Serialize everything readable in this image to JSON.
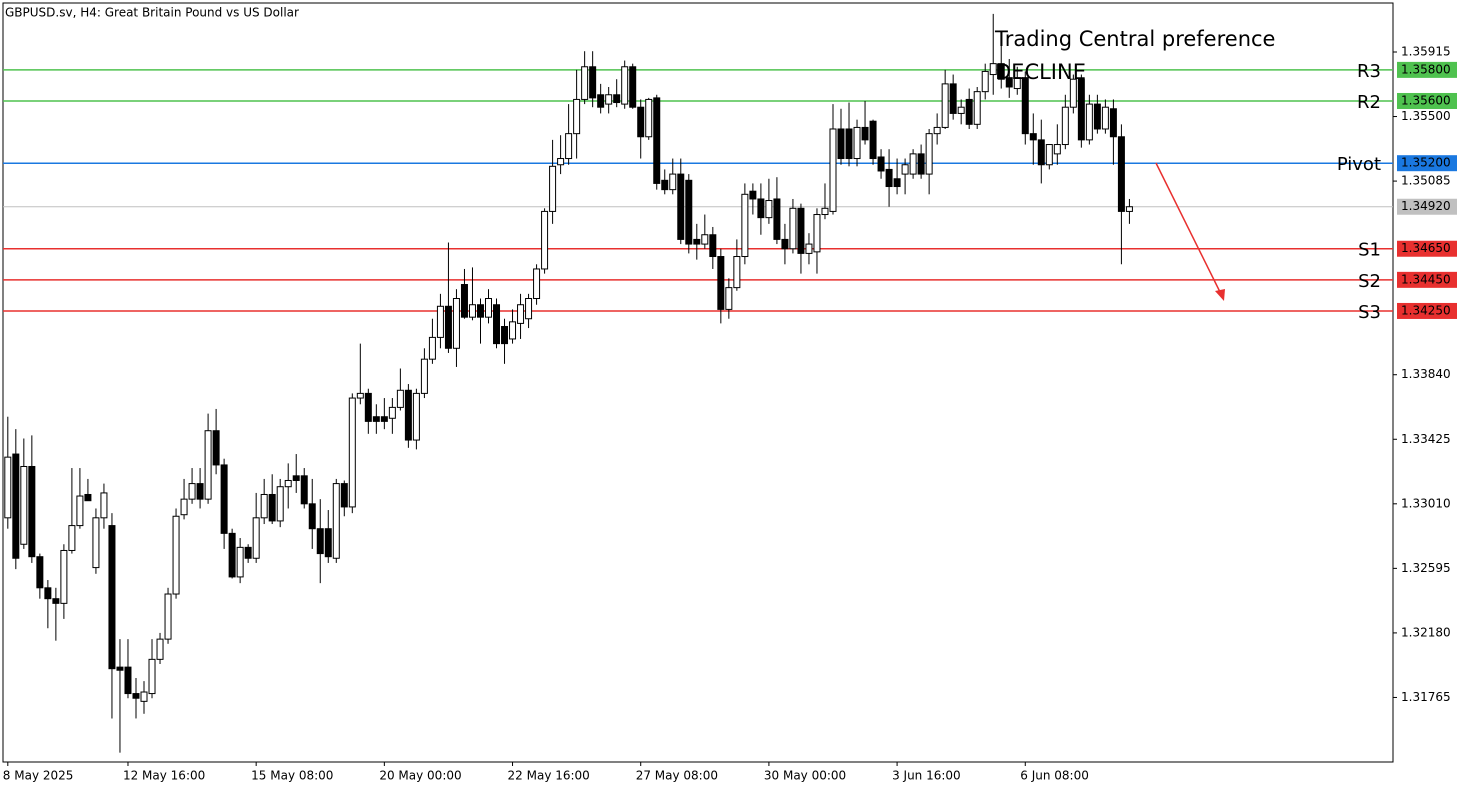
{
  "chart_data": {
    "type": "candlestick",
    "title": "GBPUSD.sv, H4:  Great Britain Pound vs US Dollar",
    "annotation": {
      "title": "Trading Central preference",
      "text": "DECLINE",
      "color": "#e8302f"
    },
    "up_color": "#ffffff",
    "down_color": "#000000",
    "open": [
      1.3292,
      1.3333,
      1.3275,
      1.3325,
      1.3267,
      1.3247,
      1.324,
      1.3237,
      1.3271,
      1.3287,
      1.3307,
      1.326,
      1.3292,
      1.3287,
      1.3196,
      1.3196,
      1.3179,
      1.3174,
      1.3179,
      1.3201,
      1.3214,
      1.3243,
      1.3294,
      1.3304,
      1.3314,
      1.3304,
      1.3348,
      1.3326,
      1.3282,
      1.3254,
      1.3273,
      1.3266,
      1.3292,
      1.3307,
      1.329,
      1.3312,
      1.3319,
      1.3319,
      1.3301,
      1.3285,
      1.3285,
      1.3266,
      1.3314,
      1.3299,
      1.3369,
      1.3372,
      1.3357,
      1.3357,
      1.3356,
      1.3363,
      1.3374,
      1.3342,
      1.3372,
      1.3394,
      1.3408,
      1.3428,
      1.3401,
      1.3442,
      1.3421,
      1.3429,
      1.3421,
      1.3429,
      1.3415,
      1.3407,
      1.3417,
      1.342,
      1.3433,
      1.3452,
      1.3489,
      1.3519,
      1.3523,
      1.3539,
      1.3561,
      1.3582,
      1.3564,
      1.3558,
      1.3564,
      1.3558,
      1.3582,
      1.3556,
      1.3537,
      1.3562,
      1.3509,
      1.3503,
      1.3513,
      1.3509,
      1.3471,
      1.3468,
      1.3474,
      1.346,
      1.3426,
      1.344,
      1.346,
      1.3502,
      1.3497,
      1.3485,
      1.3497,
      1.3471,
      1.3465,
      1.3491,
      1.3462,
      1.3463,
      1.3487,
      1.3489,
      1.3542,
      1.3542,
      1.3523,
      1.3543,
      1.3547,
      1.3524,
      1.3516,
      1.351,
      1.3513,
      1.3513,
      1.3526,
      1.3513,
      1.3539,
      1.3543,
      1.3571,
      1.3552,
      1.3561,
      1.3545,
      1.3566,
      1.3577,
      1.3584,
      1.3575,
      1.3568,
      1.3575,
      1.3539,
      1.3535,
      1.3519,
      1.3526,
      1.3532,
      1.3556,
      1.3574,
      1.3535,
      1.3558,
      1.3542,
      1.3555,
      1.3537,
      1.3489
    ],
    "high": [
      1.3357,
      1.3349,
      1.3343,
      1.3345,
      1.3269,
      1.3252,
      1.3247,
      1.3275,
      1.3324,
      1.3324,
      1.3317,
      1.3298,
      1.3314,
      1.3295,
      1.3214,
      1.3214,
      1.3189,
      1.3187,
      1.3214,
      1.3218,
      1.3247,
      1.3298,
      1.3317,
      1.3324,
      1.3324,
      1.3359,
      1.3362,
      1.333,
      1.3285,
      1.3279,
      1.3275,
      1.3308,
      1.3317,
      1.332,
      1.3317,
      1.3327,
      1.3333,
      1.3324,
      1.3317,
      1.3304,
      1.3297,
      1.3317,
      1.3316,
      1.3372,
      1.3404,
      1.3375,
      1.3365,
      1.3369,
      1.3369,
      1.3388,
      1.3378,
      1.3375,
      1.3401,
      1.342,
      1.3436,
      1.3469,
      1.3439,
      1.3452,
      1.3453,
      1.3433,
      1.3439,
      1.3433,
      1.342,
      1.3426,
      1.3436,
      1.3436,
      1.3455,
      1.3491,
      1.3535,
      1.3538,
      1.3558,
      1.358,
      1.3592,
      1.3592,
      1.3571,
      1.3569,
      1.3574,
      1.3586,
      1.3584,
      1.3561,
      1.3562,
      1.3564,
      1.3516,
      1.3523,
      1.3523,
      1.3513,
      1.3481,
      1.3487,
      1.3479,
      1.3465,
      1.3446,
      1.3471,
      1.3507,
      1.3507,
      1.3507,
      1.351,
      1.3511,
      1.3481,
      1.3497,
      1.3494,
      1.3475,
      1.3491,
      1.3507,
      1.3558,
      1.3555,
      1.3559,
      1.3548,
      1.356,
      1.3548,
      1.3529,
      1.3529,
      1.3523,
      1.3523,
      1.3529,
      1.3532,
      1.3542,
      1.3552,
      1.358,
      1.3577,
      1.3561,
      1.3568,
      1.3569,
      1.3584,
      1.3616,
      1.3605,
      1.3587,
      1.3582,
      1.3579,
      1.3552,
      1.3548,
      1.3532,
      1.3545,
      1.3564,
      1.3577,
      1.3577,
      1.3564,
      1.3564,
      1.3561,
      1.3561,
      1.3545,
      1.3497
    ],
    "low": [
      1.3285,
      1.3259,
      1.3272,
      1.3263,
      1.324,
      1.3221,
      1.3213,
      1.3227,
      1.3269,
      1.3285,
      1.3303,
      1.3256,
      1.3285,
      1.3163,
      1.3141,
      1.3176,
      1.3163,
      1.3166,
      1.3176,
      1.3198,
      1.3211,
      1.324,
      1.3291,
      1.3301,
      1.3298,
      1.3301,
      1.332,
      1.3272,
      1.3253,
      1.325,
      1.3263,
      1.3263,
      1.3288,
      1.3288,
      1.3286,
      1.3298,
      1.3308,
      1.3298,
      1.3272,
      1.325,
      1.3263,
      1.3263,
      1.3293,
      1.3295,
      1.3365,
      1.3346,
      1.3346,
      1.3349,
      1.3346,
      1.3361,
      1.3337,
      1.3336,
      1.3369,
      1.3391,
      1.3401,
      1.3398,
      1.3389,
      1.342,
      1.3419,
      1.3404,
      1.3417,
      1.3401,
      1.3391,
      1.3404,
      1.3407,
      1.3414,
      1.3429,
      1.3449,
      1.3481,
      1.3513,
      1.3519,
      1.3523,
      1.3558,
      1.3556,
      1.3552,
      1.3552,
      1.3556,
      1.3555,
      1.3555,
      1.3523,
      1.3535,
      1.3503,
      1.35,
      1.35,
      1.3468,
      1.3462,
      1.3458,
      1.3465,
      1.3452,
      1.3417,
      1.342,
      1.3438,
      1.3455,
      1.3487,
      1.3474,
      1.3481,
      1.3468,
      1.3455,
      1.3462,
      1.3449,
      1.3455,
      1.3449,
      1.3484,
      1.3487,
      1.3519,
      1.3518,
      1.3518,
      1.3532,
      1.3519,
      1.351,
      1.3492,
      1.35,
      1.35,
      1.351,
      1.351,
      1.35,
      1.3532,
      1.3542,
      1.3548,
      1.3545,
      1.3542,
      1.3542,
      1.3561,
      1.3564,
      1.3568,
      1.3562,
      1.3564,
      1.3532,
      1.3519,
      1.3507,
      1.3516,
      1.3519,
      1.3529,
      1.3552,
      1.353,
      1.3532,
      1.3539,
      1.3539,
      1.3519,
      1.3455,
      1.3481
    ],
    "close": [
      1.3331,
      1.3266,
      1.3325,
      1.3267,
      1.3247,
      1.324,
      1.3237,
      1.3271,
      1.3287,
      1.3306,
      1.3303,
      1.3292,
      1.3308,
      1.3195,
      1.3194,
      1.3179,
      1.3176,
      1.318,
      1.3201,
      1.3214,
      1.3243,
      1.3293,
      1.3304,
      1.3314,
      1.3304,
      1.3348,
      1.3326,
      1.3282,
      1.3254,
      1.3273,
      1.3266,
      1.3292,
      1.3307,
      1.329,
      1.3312,
      1.3316,
      1.3316,
      1.3301,
      1.3285,
      1.3269,
      1.3267,
      1.3314,
      1.3299,
      1.3369,
      1.3372,
      1.3354,
      1.3354,
      1.3354,
      1.3363,
      1.3374,
      1.3342,
      1.3372,
      1.3394,
      1.3408,
      1.3428,
      1.3401,
      1.3433,
      1.3421,
      1.3429,
      1.3421,
      1.3433,
      1.3404,
      1.3404,
      1.3418,
      1.3429,
      1.3433,
      1.3452,
      1.3489,
      1.3518,
      1.3523,
      1.3539,
      1.3561,
      1.3582,
      1.3562,
      1.3556,
      1.3564,
      1.3559,
      1.3582,
      1.3556,
      1.3537,
      1.3561,
      1.3507,
      1.3503,
      1.3513,
      1.3471,
      1.3468,
      1.3468,
      1.3474,
      1.346,
      1.3426,
      1.344,
      1.346,
      1.35,
      1.3497,
      1.3485,
      1.3496,
      1.3471,
      1.3465,
      1.3491,
      1.3462,
      1.3468,
      1.3487,
      1.3491,
      1.3542,
      1.3523,
      1.3523,
      1.3543,
      1.3535,
      1.3523,
      1.3515,
      1.3505,
      1.3505,
      1.3519,
      1.3526,
      1.3513,
      1.3539,
      1.3543,
      1.3571,
      1.3552,
      1.3556,
      1.3545,
      1.3566,
      1.3579,
      1.3584,
      1.3574,
      1.3569,
      1.3575,
      1.3539,
      1.3535,
      1.3519,
      1.3532,
      1.3532,
      1.3556,
      1.3574,
      1.3535,
      1.3558,
      1.3542,
      1.3556,
      1.3537,
      1.3489,
      1.3492
    ],
    "xlim": [
      -0.6,
      172.9
    ],
    "xticks": [
      {
        "value": 0,
        "label": "8 May 2025"
      },
      {
        "value": 15,
        "label": "12 May 16:00"
      },
      {
        "value": 31,
        "label": "15 May 08:00"
      },
      {
        "value": 47,
        "label": "20 May 00:00"
      },
      {
        "value": 63,
        "label": "22 May 16:00"
      },
      {
        "value": 79,
        "label": "27 May 08:00"
      },
      {
        "value": 95,
        "label": "30 May 00:00"
      },
      {
        "value": 111,
        "label": "3 Jun 16:00"
      },
      {
        "value": 127,
        "label": "6 Jun 08:00"
      }
    ],
    "ylim": [
      1.3135,
      1.3623
    ],
    "yticks": [
      1.35915,
      {
        "value": 1.355,
        "label": "1.35500"
      },
      1.35085,
      {
        "value": 1.3384,
        "label": "1.33840"
      },
      1.33425,
      {
        "value": 1.3301,
        "label": "1.33010"
      },
      1.32595,
      {
        "value": 1.3218,
        "label": "1.32180"
      },
      1.31765
    ],
    "levels": [
      {
        "name": "R3",
        "value": 1.358,
        "label": "1.35800",
        "color": "#4fc24f"
      },
      {
        "name": "R2",
        "value": 1.356,
        "label": "1.35600",
        "color": "#4fc24f"
      },
      {
        "name": "Pivot",
        "value": 1.352,
        "label": "1.35200",
        "color": "#1a78e0"
      },
      {
        "name": "S1",
        "value": 1.3465,
        "label": "1.34650",
        "color": "#e8302f"
      },
      {
        "name": "S2",
        "value": 1.3445,
        "label": "1.34450",
        "color": "#e8302f"
      },
      {
        "name": "S3",
        "value": 1.3425,
        "label": "1.34250",
        "color": "#e8302f"
      }
    ],
    "current": {
      "value": 1.3492,
      "label": "1.34920",
      "color": "#c0c0c0"
    }
  }
}
